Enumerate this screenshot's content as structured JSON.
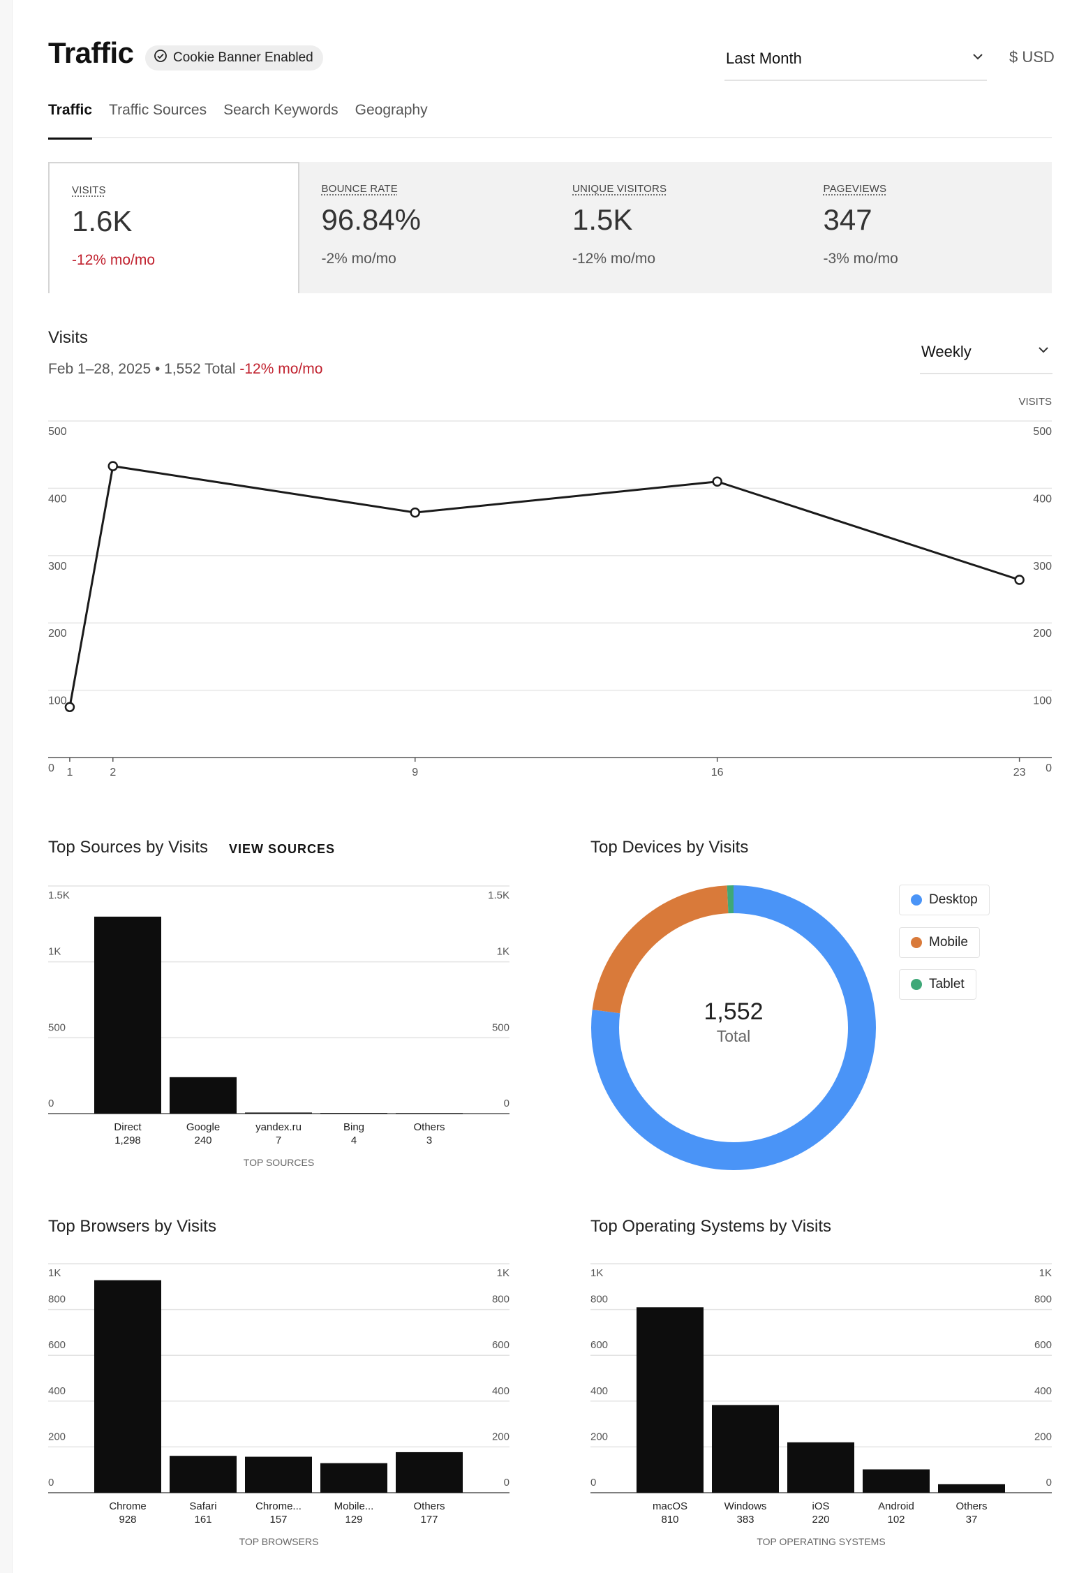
{
  "header": {
    "title": "Traffic",
    "cookie_badge": "Cookie Banner Enabled",
    "period": "Last Month",
    "currency": "$ USD"
  },
  "tabs": [
    {
      "label": "Traffic",
      "active": true
    },
    {
      "label": "Traffic Sources",
      "active": false
    },
    {
      "label": "Search Keywords",
      "active": false
    },
    {
      "label": "Geography",
      "active": false
    }
  ],
  "kpis": [
    {
      "label": "VISITS",
      "value": "1.6K",
      "delta": "-12% mo/mo"
    },
    {
      "label": "BOUNCE RATE",
      "value": "96.84%",
      "delta": "-2% mo/mo"
    },
    {
      "label": "UNIQUE VISITORS",
      "value": "1.5K",
      "delta": "-12% mo/mo"
    },
    {
      "label": "PAGEVIEWS",
      "value": "347",
      "delta": "-3% mo/mo"
    }
  ],
  "visits": {
    "title": "Visits",
    "range": "Feb 1–28, 2025 • 1,552 Total",
    "delta": "-12% mo/mo",
    "interval": "Weekly"
  },
  "sources_section": {
    "title": "Top Sources by Visits",
    "link": "VIEW SOURCES"
  },
  "devices_section": {
    "title": "Top Devices by Visits",
    "total": "1,552",
    "total_label": "Total"
  },
  "browsers_section": {
    "title": "Top Browsers by Visits"
  },
  "os_section": {
    "title": "Top Operating Systems by Visits"
  },
  "colors": {
    "negative": "#c0202d",
    "desktop": "#4a94f7",
    "mobile": "#d97a3a",
    "tablet": "#3fa878",
    "bar": "#0d0d0d"
  },
  "icons": {
    "badge": "check-circle-icon",
    "select": "chevron-down-icon"
  },
  "chart_data": [
    {
      "id": "visits",
      "type": "line",
      "x": [
        1,
        2,
        9,
        16,
        23
      ],
      "values": [
        75,
        433,
        364,
        410,
        264
      ],
      "ylim": [
        0,
        500
      ],
      "yticks": [
        0,
        100,
        200,
        300,
        400,
        500
      ],
      "ylabel": "VISITS",
      "grid": true
    },
    {
      "id": "sources",
      "type": "bar",
      "categories": [
        "Direct",
        "Google",
        "yandex.ru",
        "Bing",
        "Others"
      ],
      "values": [
        1298,
        240,
        7,
        4,
        3
      ],
      "ylim": [
        0,
        1500
      ],
      "yticks": [
        0,
        500,
        1000,
        1500
      ],
      "ytick_labels": [
        "0",
        "500",
        "1K",
        "1.5K"
      ],
      "xlabel": "TOP SOURCES",
      "grid": true
    },
    {
      "id": "devices",
      "type": "pie",
      "labels": [
        "Desktop",
        "Mobile",
        "Tablet"
      ],
      "values": [
        1195,
        345,
        12
      ],
      "legend": "right"
    },
    {
      "id": "browsers",
      "type": "bar",
      "categories": [
        "Chrome",
        "Safari",
        "Chrome...",
        "Mobile...",
        "Others"
      ],
      "values": [
        928,
        161,
        157,
        129,
        177
      ],
      "ylim": [
        0,
        1000
      ],
      "yticks": [
        0,
        200,
        400,
        600,
        800,
        1000
      ],
      "ytick_labels": [
        "0",
        "200",
        "400",
        "600",
        "800",
        "1K"
      ],
      "xlabel": "TOP BROWSERS",
      "grid": true
    },
    {
      "id": "os",
      "type": "bar",
      "categories": [
        "macOS",
        "Windows",
        "iOS",
        "Android",
        "Others"
      ],
      "values": [
        810,
        383,
        220,
        102,
        37
      ],
      "ylim": [
        0,
        1000
      ],
      "yticks": [
        0,
        200,
        400,
        600,
        800,
        1000
      ],
      "ytick_labels": [
        "0",
        "200",
        "400",
        "600",
        "800",
        "1K"
      ],
      "xlabel": "TOP OPERATING SYSTEMS",
      "grid": true
    }
  ]
}
